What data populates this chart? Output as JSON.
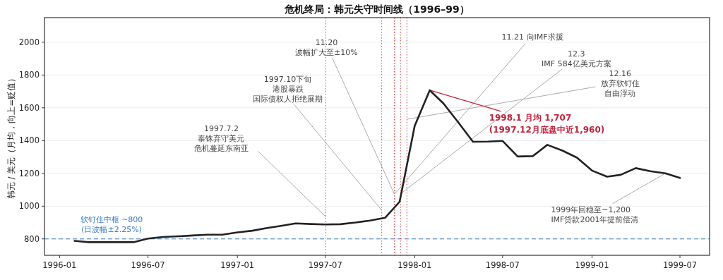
{
  "chart_data": {
    "type": "line",
    "title": "危机终局：韩元失守时间线（1996–99）",
    "ylabel": "韩元 / 美元（月均，向上=贬值）",
    "x": [
      "1996-02",
      "1996-03",
      "1996-04",
      "1996-05",
      "1996-06",
      "1996-07",
      "1996-08",
      "1996-09",
      "1996-10",
      "1996-11",
      "1996-12",
      "1997-01",
      "1997-02",
      "1997-03",
      "1997-04",
      "1997-05",
      "1997-06",
      "1997-07",
      "1997-08",
      "1997-09",
      "1997-10",
      "1997-11",
      "1997-12",
      "1998-01",
      "1998-02",
      "1998-03",
      "1998-04",
      "1998-05",
      "1998-06",
      "1998-07",
      "1998-08",
      "1998-09",
      "1998-10",
      "1998-11",
      "1998-12",
      "1999-01",
      "1999-02",
      "1999-03",
      "1999-04",
      "1999-05",
      "1999-06",
      "1999-07"
    ],
    "series": [
      {
        "color": "#222222",
        "values": [
          788,
          780,
          780,
          780,
          780,
          802,
          812,
          816,
          821,
          826,
          826,
          840,
          850,
          866,
          880,
          895,
          891,
          888,
          890,
          900,
          912,
          929,
          1027,
          1490,
          1707,
          1627,
          1510,
          1393,
          1394,
          1398,
          1303,
          1305,
          1374,
          1339,
          1296,
          1217,
          1180,
          1191,
          1232,
          1213,
          1200,
          1172
        ]
      }
    ],
    "xlim": [
      "1995-12-01",
      "1999-08-31"
    ],
    "ylim": [
      700,
      2150
    ],
    "xticks": [
      "1996-01",
      "1996-07",
      "1997-01",
      "1997-07",
      "1998-01",
      "1998-07",
      "1999-01",
      "1999-07"
    ],
    "yticks": [
      800,
      1000,
      1200,
      1400,
      1600,
      1800,
      2000
    ],
    "grid": "y",
    "ref_lines": [
      {
        "axis": "y",
        "value": 800,
        "label": "软钉住中枢 ~800\n(日波幅±2.25%)",
        "color": "#3b7dc4",
        "line_style": "dashed"
      },
      {
        "axis": "x",
        "value": "1997-07-02",
        "color": "#e06a6a",
        "line_style": "dotted"
      },
      {
        "axis": "x",
        "value": "1997-10-25",
        "color": "#e06a6a",
        "line_style": "dotted"
      },
      {
        "axis": "x",
        "value": "1997-11-20",
        "color": "#e06a6a",
        "line_style": "dotted"
      },
      {
        "axis": "x",
        "value": "1997-11-21",
        "color": "#e06a6a",
        "line_style": "dotted"
      },
      {
        "axis": "x",
        "value": "1997-12-03",
        "color": "#e06a6a",
        "line_style": "dotted"
      },
      {
        "axis": "x",
        "value": "1997-12-16",
        "color": "#e06a6a",
        "line_style": "dotted"
      }
    ],
    "annotations": [
      {
        "text": "1997.7.2\n泰铢弃守美元危机蔓延东南亚",
        "x": "1997-07-02",
        "y": 935
      },
      {
        "text": "1997.10下旬港股暴跌国际债权人拒绝展期",
        "x": "1997-10-25",
        "y": 975
      },
      {
        "text": "11.20\n波幅扩大至±10%",
        "x": "1997-11-20",
        "y": 1075
      },
      {
        "text": "11.21 向IMF求援",
        "x": "1997-11-21",
        "y": 1075
      },
      {
        "text": "12.3\nIMF 584亿美元方案",
        "x": "1997-12-03",
        "y": 1075
      },
      {
        "text": "12.16\n放弃软钉住自由浮动",
        "x": "1997-12-16",
        "y": 1530
      },
      {
        "text": "1998.1 月均 1,707\n(1997.12月底盘中近1,960)",
        "x": "1998-02",
        "y": 1707
      },
      {
        "text": "1999年回稳至~1,200\nIMF贷款2001年提前偿清",
        "x": "1999-06",
        "y": 1200
      }
    ]
  }
}
